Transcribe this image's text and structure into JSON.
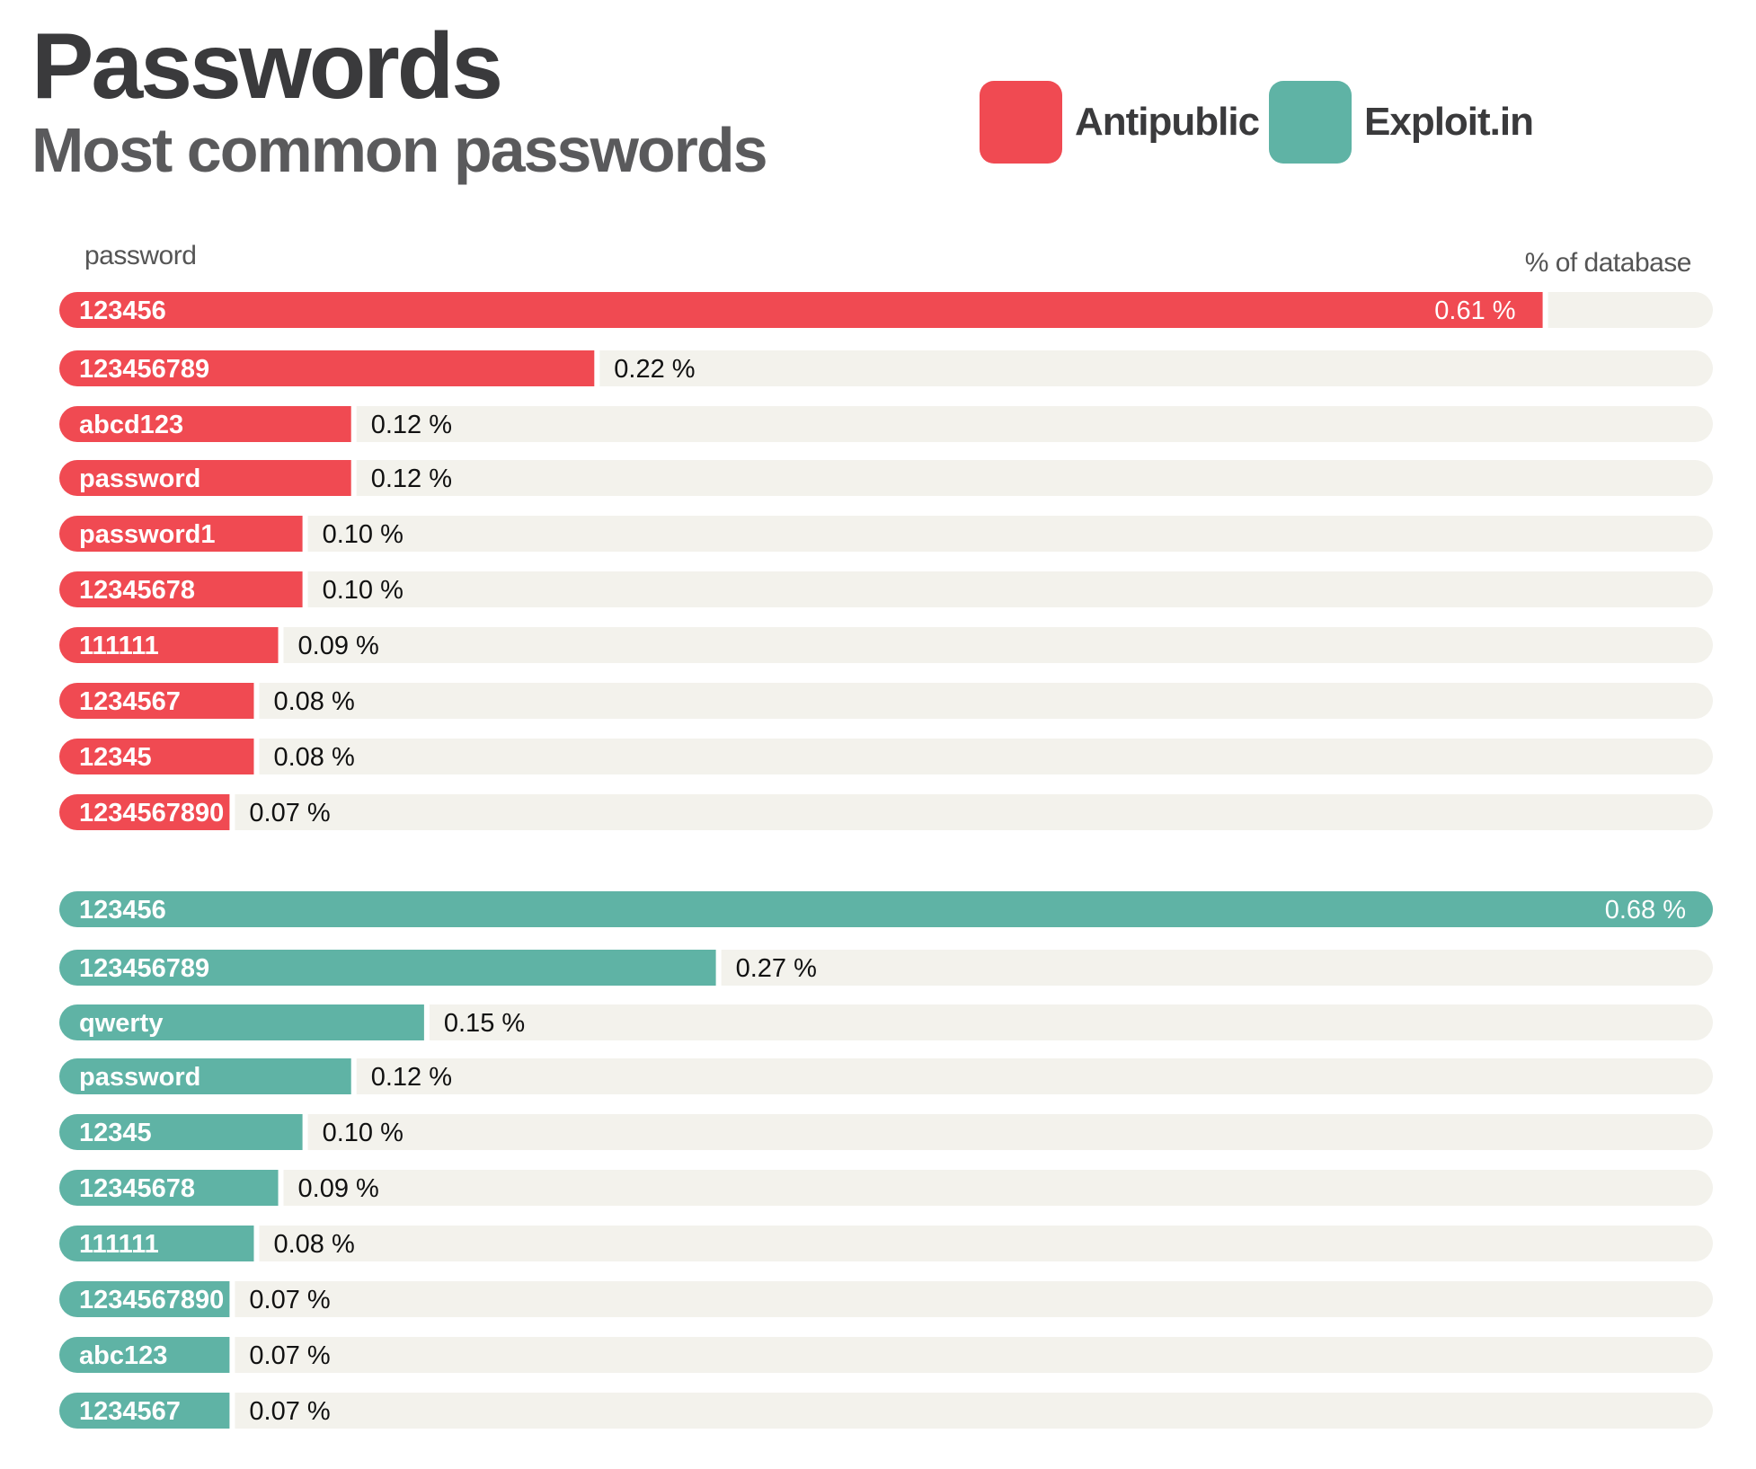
{
  "header": {
    "title": "Passwords",
    "subtitle": "Most common passwords"
  },
  "legend": [
    {
      "label": "Antipublic",
      "color": "#f04a52"
    },
    {
      "label": "Exploit.in",
      "color": "#5fb3a5"
    }
  ],
  "columns": {
    "password": "password",
    "percent": "% of database"
  },
  "chart_data": {
    "type": "bar",
    "orientation": "horizontal",
    "title": "Passwords",
    "subtitle": "Most common passwords",
    "xlabel": "% of database",
    "ylabel": "password",
    "value_unit": "%",
    "track_color": "#f3f2ec",
    "series": [
      {
        "name": "Antipublic",
        "color": "#f04a52",
        "max": 0.68,
        "categories": [
          "123456",
          "123456789",
          "abcd123",
          "password",
          "password1",
          "12345678",
          "111111",
          "1234567",
          "12345",
          "1234567890"
        ],
        "values": [
          0.61,
          0.22,
          0.12,
          0.12,
          0.1,
          0.1,
          0.09,
          0.08,
          0.08,
          0.07
        ],
        "value_labels": [
          "0.61 %",
          "0.22 %",
          "0.12 %",
          "0.12 %",
          "0.10 %",
          "0.10 %",
          "0.09 %",
          "0.08 %",
          "0.08 %",
          "0.07 %"
        ]
      },
      {
        "name": "Exploit.in",
        "color": "#5fb3a5",
        "max": 0.68,
        "categories": [
          "123456",
          "123456789",
          "qwerty",
          "password",
          "12345",
          "12345678",
          "111111",
          "1234567890",
          "abc123",
          "1234567"
        ],
        "values": [
          0.68,
          0.27,
          0.15,
          0.12,
          0.1,
          0.09,
          0.08,
          0.07,
          0.07,
          0.07
        ],
        "value_labels": [
          "0.68 %",
          "0.27 %",
          "0.15 %",
          "0.12 %",
          "0.10 %",
          "0.09 %",
          "0.08 %",
          "0.07 %",
          "0.07 %",
          "0.07 %"
        ]
      }
    ]
  }
}
